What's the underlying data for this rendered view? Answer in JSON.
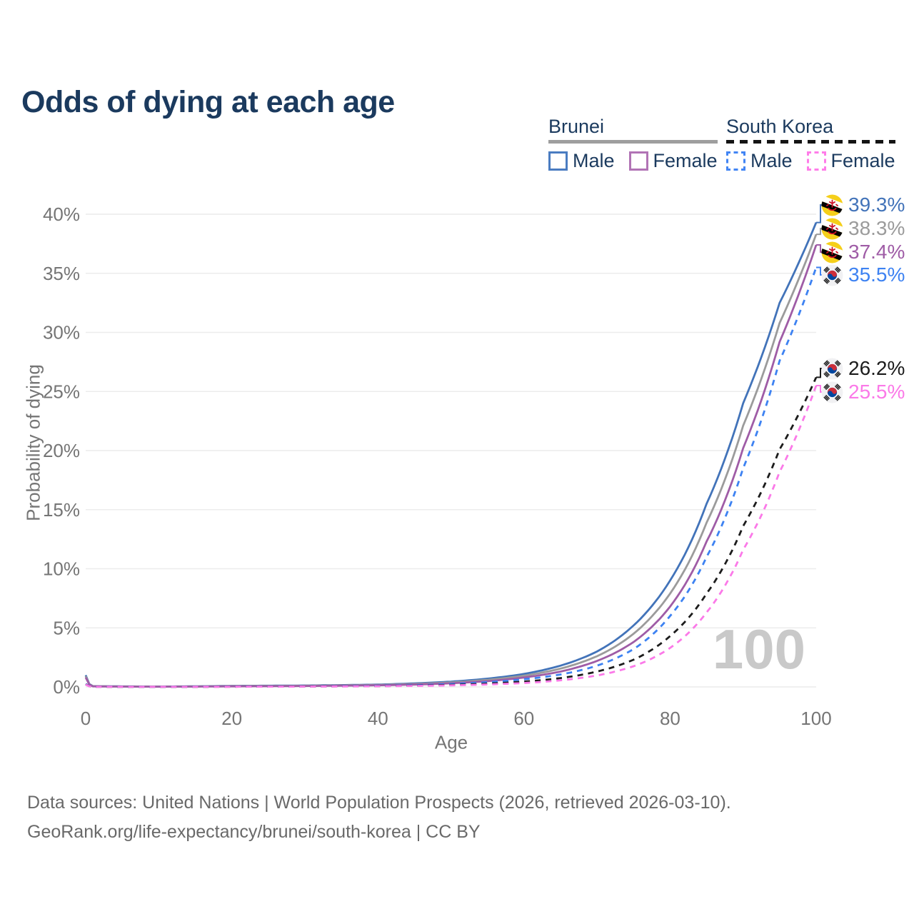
{
  "title": "Odds of dying at each age",
  "watermark": "100",
  "legend": {
    "brunei": {
      "country": "Brunei",
      "male": "Male",
      "female": "Female"
    },
    "south_korea": {
      "country": "South Korea",
      "male": "Male",
      "female": "Female"
    }
  },
  "footer": {
    "line1": "Data sources: United Nations | World Population Prospects (2026, retrieved 2026-03-10).",
    "line2": "GeoRank.org/life-expectancy/brunei/south-korea | CC BY"
  },
  "icons": {
    "brunei_flag": "brunei-flag-icon",
    "south_korea_flag": "south-korea-flag-icon"
  },
  "colors": {
    "title_text": "#1b3a5e",
    "axis_text": "#757575",
    "gridline": "#ececec",
    "watermark": "#c9c9c9",
    "footer_text": "#696969",
    "brunei_underline": "#9e9e9e",
    "korea_underline": "#141414"
  },
  "chart_data": {
    "type": "line",
    "title": "Odds of dying at each age",
    "xlabel": "Age",
    "ylabel": "Probability of dying",
    "xlim": [
      0,
      100
    ],
    "ylim": [
      0,
      40
    ],
    "grid": "horizontal",
    "legend_position": "top-right",
    "xticks": [
      {
        "value": 0,
        "label": "0"
      },
      {
        "value": 20,
        "label": "20"
      },
      {
        "value": 40,
        "label": "40"
      },
      {
        "value": 60,
        "label": "60"
      },
      {
        "value": 80,
        "label": "80"
      },
      {
        "value": 100,
        "label": "100"
      }
    ],
    "yticks": [
      {
        "value": 0,
        "label": "0%"
      },
      {
        "value": 5,
        "label": "5%"
      },
      {
        "value": 10,
        "label": "10%"
      },
      {
        "value": 15,
        "label": "15%"
      },
      {
        "value": 20,
        "label": "20%"
      },
      {
        "value": 25,
        "label": "25%"
      },
      {
        "value": 30,
        "label": "30%"
      },
      {
        "value": 35,
        "label": "35%"
      },
      {
        "value": 40,
        "label": "40%"
      }
    ],
    "ages": [
      0,
      1,
      10,
      20,
      30,
      40,
      45,
      50,
      55,
      60,
      65,
      70,
      75,
      80,
      85,
      90,
      95,
      100
    ],
    "series": [
      {
        "id": "brunei-male",
        "name": "Brunei — Male",
        "flag": "brunei",
        "color": "#4273b9",
        "dashed": false,
        "end_value": 39.3,
        "end_label": "39.3%",
        "values": [
          1.0,
          0.06,
          0.03,
          0.09,
          0.12,
          0.2,
          0.3,
          0.45,
          0.7,
          1.1,
          1.8,
          3.0,
          5.2,
          9.0,
          15.5,
          24.0,
          32.5,
          39.3
        ]
      },
      {
        "id": "brunei-both",
        "name": "Brunei — Both sexes",
        "flag": "brunei",
        "color": "#9b9b9b",
        "dashed": false,
        "end_value": 38.3,
        "end_label": "38.3%",
        "values": [
          0.9,
          0.055,
          0.025,
          0.07,
          0.1,
          0.17,
          0.25,
          0.38,
          0.6,
          0.95,
          1.55,
          2.6,
          4.5,
          7.9,
          13.9,
          22.1,
          30.8,
          38.3
        ]
      },
      {
        "id": "brunei-female",
        "name": "Brunei — Female",
        "flag": "brunei",
        "color": "#9f5ca6",
        "dashed": false,
        "end_value": 37.4,
        "end_label": "37.4%",
        "values": [
          0.8,
          0.05,
          0.02,
          0.05,
          0.08,
          0.14,
          0.2,
          0.31,
          0.49,
          0.8,
          1.3,
          2.2,
          3.8,
          6.8,
          12.3,
          20.2,
          29.2,
          37.4
        ]
      },
      {
        "id": "korea-male",
        "name": "South Korea — Male",
        "flag": "korea",
        "color": "#3d82f2",
        "dashed": true,
        "end_value": 35.5,
        "end_label": "35.5%",
        "values": [
          0.25,
          0.02,
          0.008,
          0.03,
          0.05,
          0.1,
          0.15,
          0.25,
          0.4,
          0.65,
          1.05,
          1.8,
          3.2,
          6.0,
          11.0,
          18.5,
          27.6,
          35.5
        ]
      },
      {
        "id": "korea-both",
        "name": "South Korea — Both sexes",
        "flag": "korea",
        "color": "#1c1c1c",
        "dashed": true,
        "end_value": 26.2,
        "end_label": "26.2%",
        "values": [
          0.22,
          0.018,
          0.007,
          0.02,
          0.04,
          0.07,
          0.11,
          0.17,
          0.28,
          0.45,
          0.75,
          1.3,
          2.3,
          4.3,
          7.9,
          13.6,
          20.1,
          26.2
        ]
      },
      {
        "id": "korea-female",
        "name": "South Korea — Female",
        "flag": "korea",
        "color": "#fb79e8",
        "dashed": true,
        "end_value": 25.5,
        "end_label": "25.5%",
        "values": [
          0.2,
          0.015,
          0.006,
          0.015,
          0.03,
          0.06,
          0.09,
          0.13,
          0.21,
          0.33,
          0.56,
          0.97,
          1.75,
          3.3,
          6.3,
          11.6,
          18.2,
          25.5
        ]
      }
    ]
  }
}
